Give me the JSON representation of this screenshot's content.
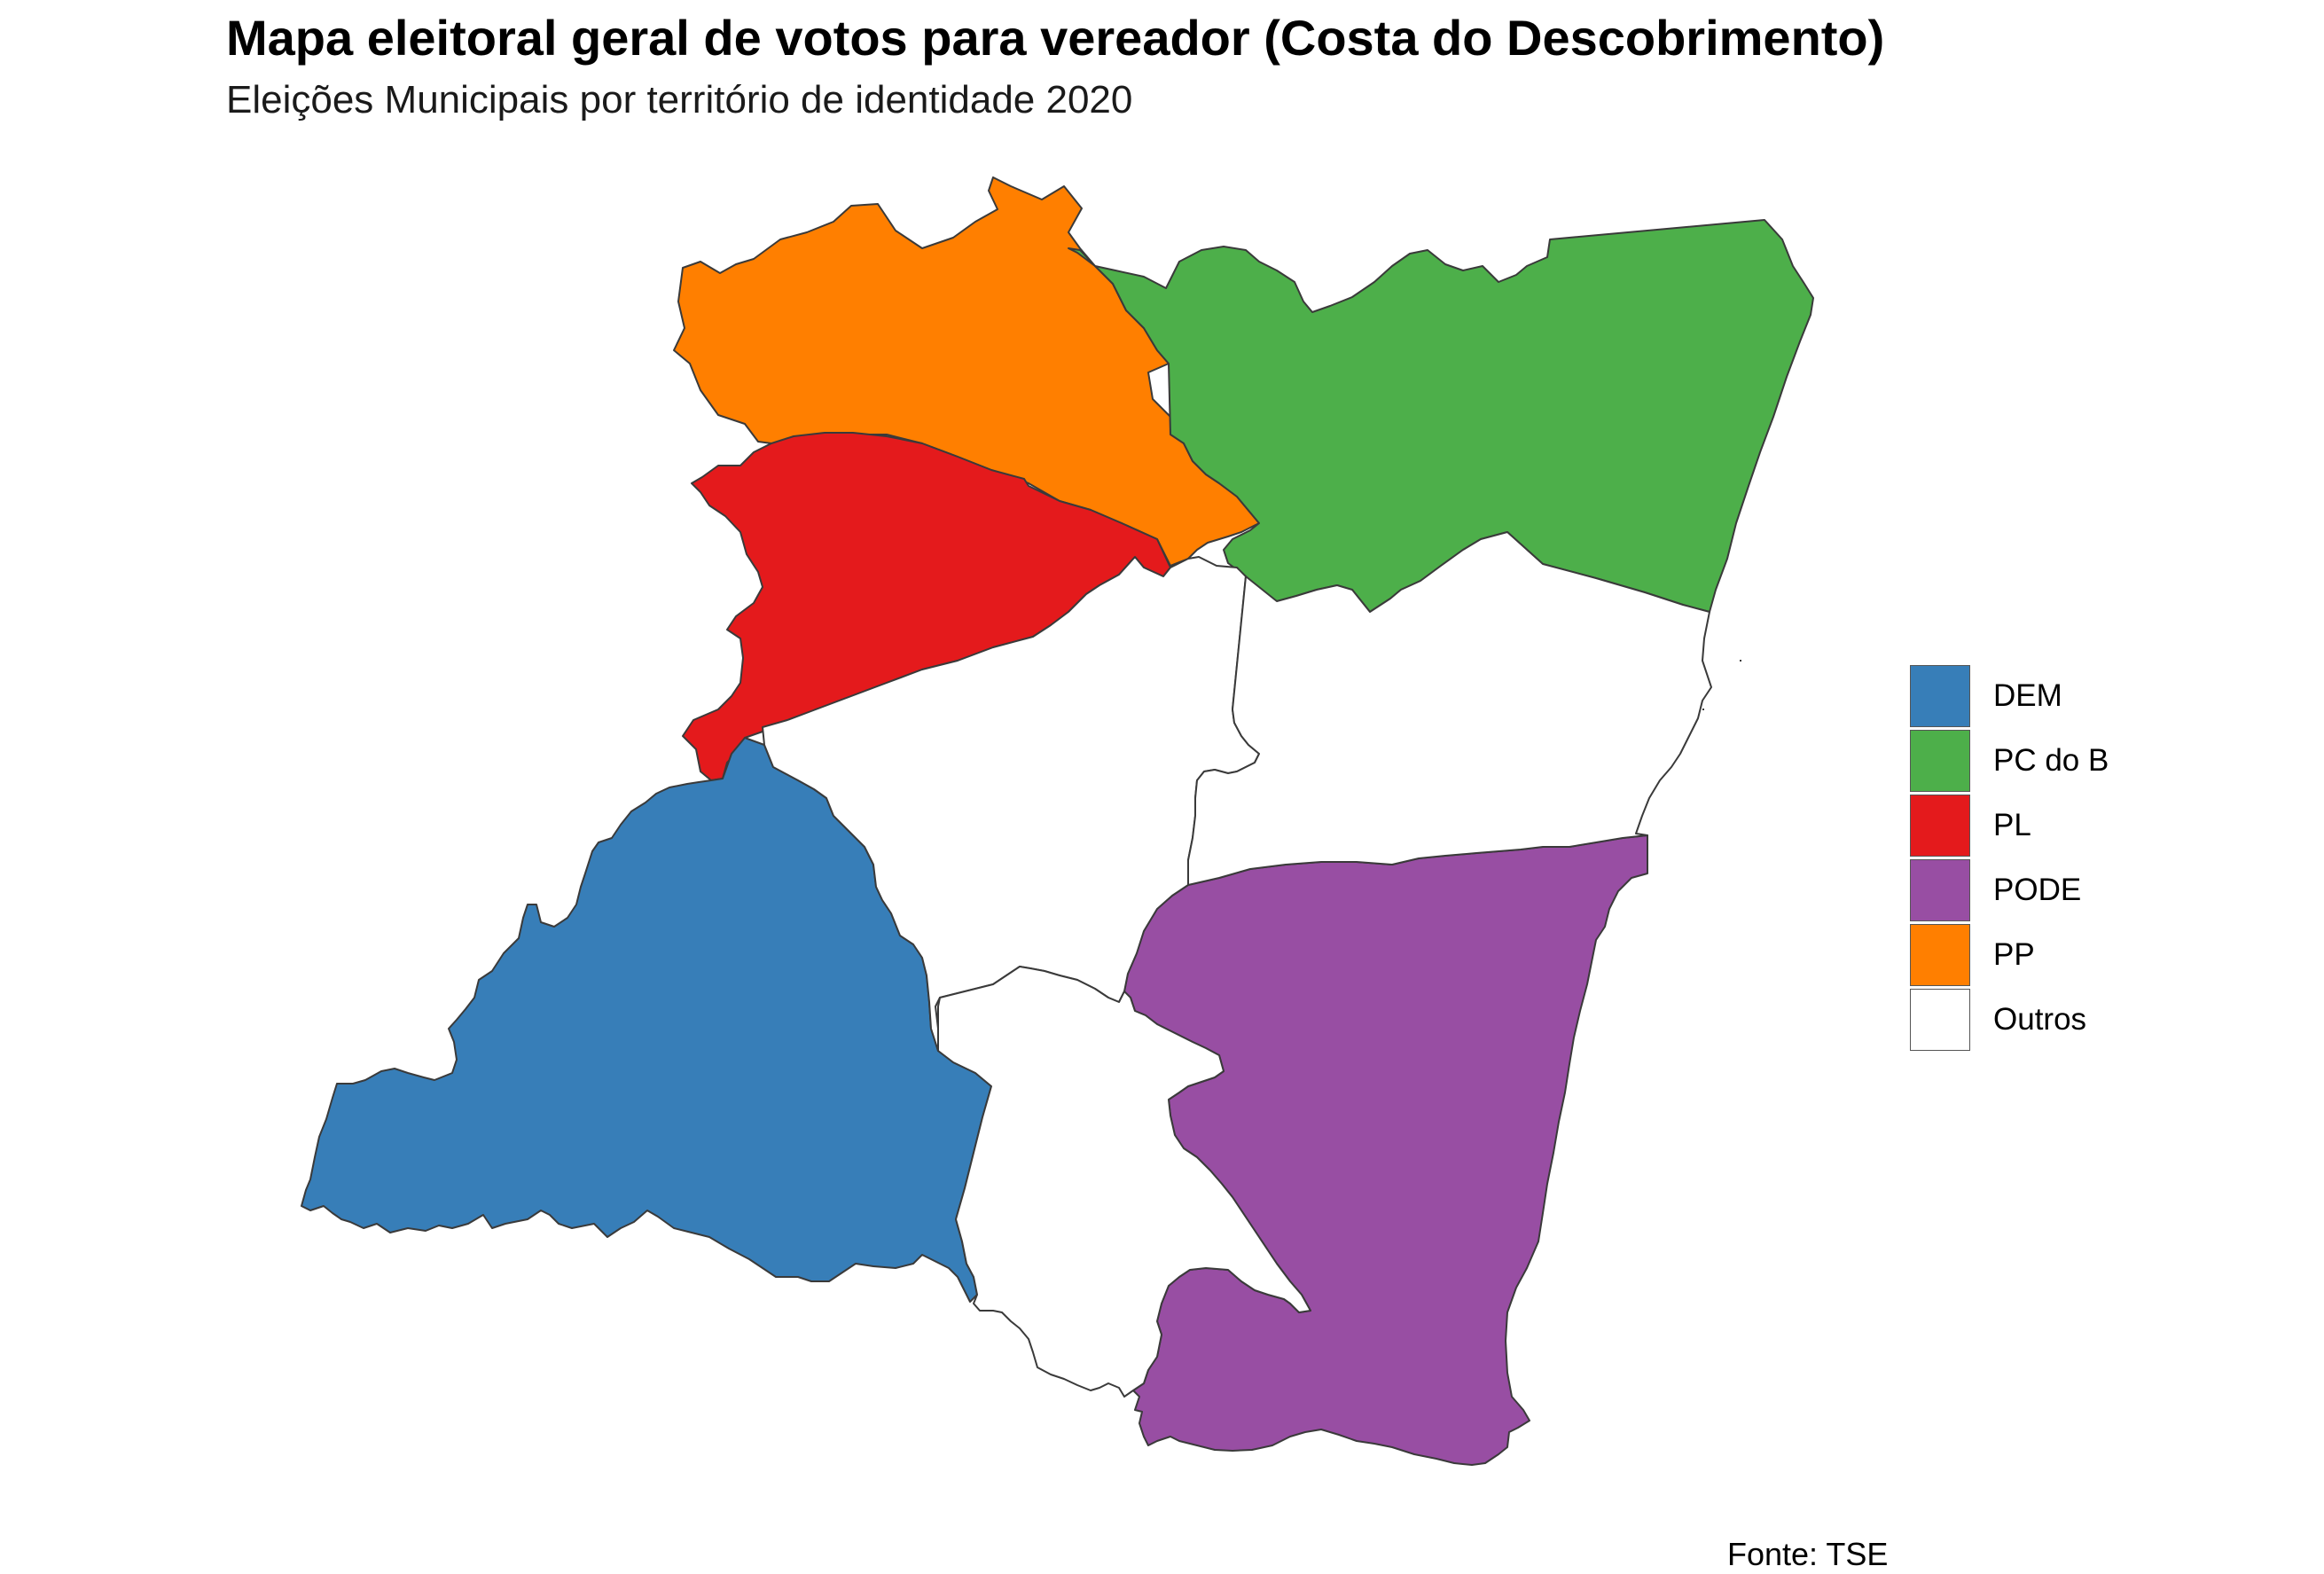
{
  "title": "Mapa eleitoral geral de votos para vereador (Costa do Descobrimento)",
  "subtitle": "Eleições Municipais por território de identidade 2020",
  "caption": "Fonte: TSE",
  "legend": [
    {
      "label": "DEM",
      "color": "#377EB8"
    },
    {
      "label": "PC do B",
      "color": "#4DAF4A"
    },
    {
      "label": "PL",
      "color": "#E41A1C"
    },
    {
      "label": "PODE",
      "color": "#984EA3"
    },
    {
      "label": "PP",
      "color": "#FF7F00"
    },
    {
      "label": "Outros",
      "color": "#FFFFFF"
    }
  ],
  "regions": [
    {
      "party": "PP",
      "color": "#FF7F00"
    },
    {
      "party": "PC do B",
      "color": "#4DAF4A"
    },
    {
      "party": "PL",
      "color": "#E41A1C"
    },
    {
      "party": "DEM",
      "color": "#377EB8"
    },
    {
      "party": "PODE",
      "color": "#984EA3"
    },
    {
      "party": "Outros",
      "color": "#FFFFFF"
    },
    {
      "party": "Outros",
      "color": "#FFFFFF"
    },
    {
      "party": "Outros",
      "color": "#FFFFFF"
    }
  ]
}
